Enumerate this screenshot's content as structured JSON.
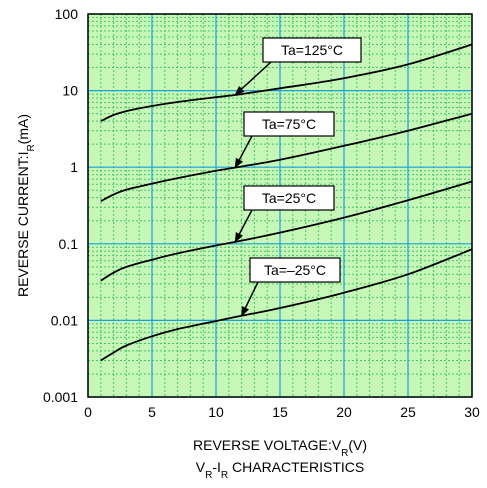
{
  "chart_data": {
    "type": "line",
    "y_scale": "log",
    "xlim": [
      0,
      30
    ],
    "ylim": [
      0.001,
      100
    ],
    "x_ticks": [
      "0",
      "5",
      "10",
      "15",
      "20",
      "25",
      "30"
    ],
    "y_ticks": [
      "100",
      "10",
      "1",
      "0.1",
      "0.01",
      "0.001"
    ],
    "ylabel": {
      "main": "REVERSE CURRENT:I",
      "sub": "R",
      "unit": "(mA)"
    },
    "xlabel": {
      "main": "REVERSE VOLTAGE:V",
      "sub": "R",
      "unit": "(V)"
    },
    "caption": {
      "v": "V",
      "v_sub": "R",
      "dash": "-I",
      "i_sub": "R",
      "rest": " CHARACTERISTICS"
    },
    "grid": true,
    "colors": {
      "background": "#c6f7b6",
      "major_grid": "#1aa0e0",
      "minor_grid": "#44c86a",
      "line": "#000000"
    },
    "series": [
      {
        "name": "Ta=125°C",
        "x": [
          1,
          2,
          3,
          5,
          7,
          10,
          12,
          15,
          20,
          25,
          30
        ],
        "y": [
          4.0,
          4.8,
          5.4,
          6.3,
          7.1,
          8.2,
          9.0,
          10.7,
          14.5,
          22,
          40
        ]
      },
      {
        "name": "Ta=75°C",
        "x": [
          1,
          2,
          3,
          5,
          7,
          10,
          12,
          15,
          20,
          25,
          30
        ],
        "y": [
          0.36,
          0.44,
          0.51,
          0.61,
          0.72,
          0.9,
          1.02,
          1.25,
          1.9,
          3.0,
          5.0
        ]
      },
      {
        "name": "Ta=25°C",
        "x": [
          1,
          2,
          3,
          5,
          7,
          10,
          12,
          15,
          20,
          25,
          30
        ],
        "y": [
          0.033,
          0.042,
          0.05,
          0.062,
          0.075,
          0.095,
          0.11,
          0.14,
          0.22,
          0.37,
          0.65
        ]
      },
      {
        "name": "Ta=–25°C",
        "x": [
          1,
          2,
          3,
          5,
          7,
          10,
          12,
          15,
          20,
          25,
          30
        ],
        "y": [
          0.003,
          0.0038,
          0.0047,
          0.0062,
          0.0077,
          0.0098,
          0.0115,
          0.0145,
          0.023,
          0.04,
          0.085
        ]
      }
    ],
    "annotations": [
      {
        "text": "Ta=125°C",
        "series": 0,
        "arrow_to_x": 11.5
      },
      {
        "text": "Ta=75°C",
        "series": 1,
        "arrow_to_x": 11.5
      },
      {
        "text": "Ta=25°C",
        "series": 2,
        "arrow_to_x": 11.5
      },
      {
        "text": "Ta=–25°C",
        "series": 3,
        "arrow_to_x": 12
      }
    ]
  }
}
